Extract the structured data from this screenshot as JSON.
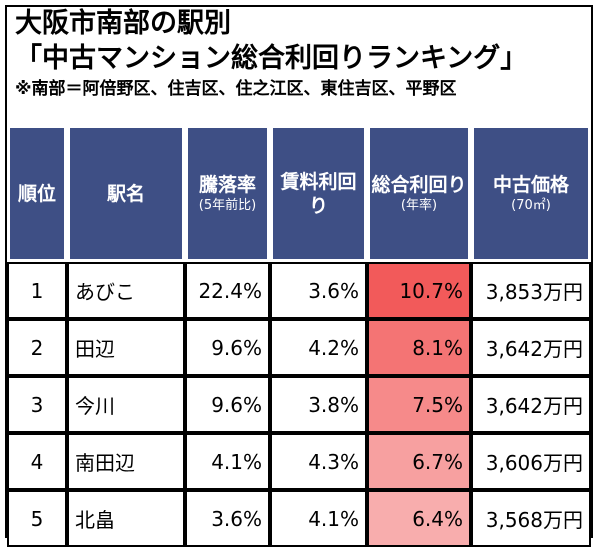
{
  "title": {
    "line1": "大阪市南部の駅別",
    "line2": "「中古マンション総合利回りランキング」",
    "note": "※南部＝阿倍野区、住吉区、住之江区、東住吉区、平野区"
  },
  "table": {
    "headers": [
      {
        "main": "順位",
        "sub": ""
      },
      {
        "main": "駅名",
        "sub": ""
      },
      {
        "main": "騰落率",
        "sub": "(5年前比)"
      },
      {
        "main": "賃料利回り",
        "sub": ""
      },
      {
        "main": "総合利回り",
        "sub": "(年率)"
      },
      {
        "main": "中古価格",
        "sub": "(70㎡)"
      }
    ],
    "rows": [
      {
        "rank": "1",
        "station": "あびこ",
        "change": "22.4%",
        "rent_yield": "3.6%",
        "total_yield": "10.7%",
        "price": "3,853万円"
      },
      {
        "rank": "2",
        "station": "田辺",
        "change": "9.6%",
        "rent_yield": "4.2%",
        "total_yield": "8.1%",
        "price": "3,642万円"
      },
      {
        "rank": "3",
        "station": "今川",
        "change": "9.6%",
        "rent_yield": "3.8%",
        "total_yield": "7.5%",
        "price": "3,642万円"
      },
      {
        "rank": "4",
        "station": "南田辺",
        "change": "4.1%",
        "rent_yield": "4.3%",
        "total_yield": "6.7%",
        "price": "3,606万円"
      },
      {
        "rank": "5",
        "station": "北畠",
        "change": "3.6%",
        "rent_yield": "4.1%",
        "total_yield": "6.4%",
        "price": "3,568万円"
      }
    ]
  },
  "colors": {
    "header_bg": "#3e4f85",
    "highlight": [
      "#f25a5a",
      "#f47474",
      "#f68a8a",
      "#f7a0a0",
      "#f8adad"
    ]
  }
}
